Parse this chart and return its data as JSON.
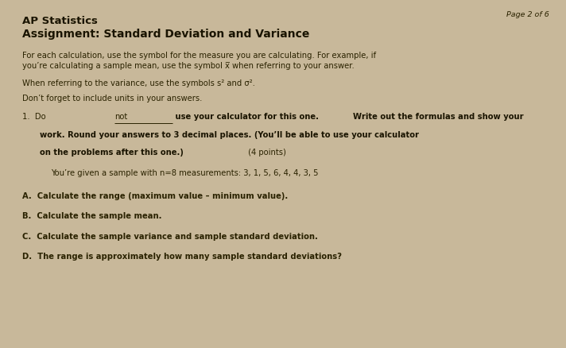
{
  "background_color": "#c8b89a",
  "page_label": "Page 2 of 6",
  "title_line1": "AP Statistics",
  "title_line2": "Assignment: Standard Deviation and Variance",
  "para1_line1": "For each calculation, use the symbol for the measure you are calculating. For example, if",
  "para1_line2": "you’re calculating a sample mean, use the symbol x̅ when referring to your answer.",
  "para2": "When referring to the variance, use the symbols s² and σ².",
  "para3": "Don’t forget to include units in your answers.",
  "item1_given": "You’re given a sample with n=8 measurements: 3, 1, 5, 6, 4, 4, 3, 5",
  "itemA": "A.  Calculate the range (maximum value – minimum value).",
  "itemB": "B.  Calculate the sample mean.",
  "itemC": "C.  Calculate the sample variance and sample standard deviation.",
  "itemD": "D.  The range is approximately how many sample standard deviations?",
  "text_color": "#2a2200",
  "title_color": "#1a1400",
  "bold_color": "#1a1400"
}
